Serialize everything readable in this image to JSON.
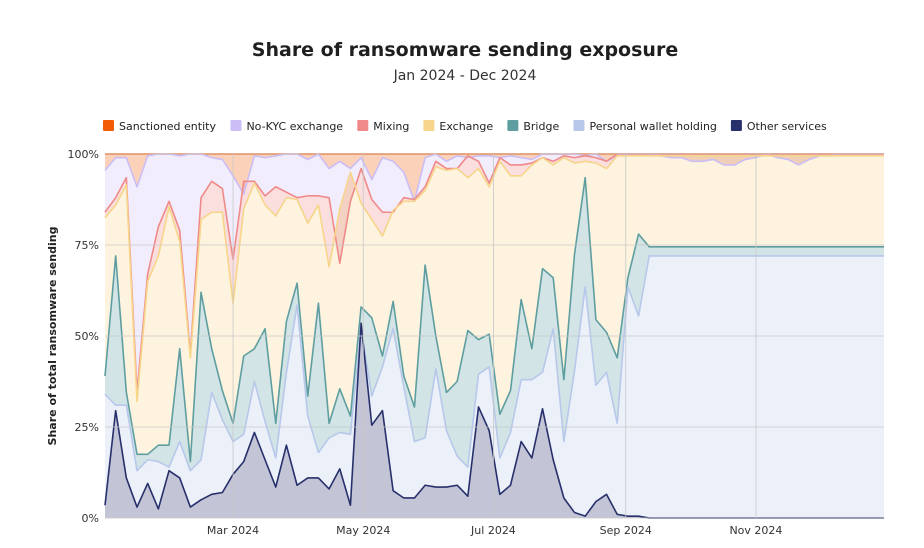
{
  "chart_data": {
    "type": "area",
    "stacked": true,
    "normalized": true,
    "title": "Share of ransomware sending exposure",
    "subtitle": "Jan 2024 - Dec 2024",
    "ylabel": "Share of total ransomware sending",
    "xlabel": "",
    "ylim": [
      0,
      100
    ],
    "yticks": [
      "0%",
      "25%",
      "50%",
      "75%",
      "100%"
    ],
    "ytick_values": [
      0,
      25,
      50,
      75,
      100
    ],
    "xticks": [
      {
        "label": "Mar 2024",
        "x": "2024-03-01"
      },
      {
        "label": "May 2024",
        "x": "2024-05-01"
      },
      {
        "label": "Jul 2024",
        "x": "2024-07-01"
      },
      {
        "label": "Sep 2024",
        "x": "2024-09-01"
      },
      {
        "label": "Nov 2024",
        "x": "2024-11-01"
      }
    ],
    "x_range": [
      "2024-01-01",
      "2024-12-31"
    ],
    "grid": true,
    "legend_position": "top",
    "x": [
      "2024-01-01",
      "2024-01-06",
      "2024-01-11",
      "2024-01-16",
      "2024-01-21",
      "2024-01-26",
      "2024-01-31",
      "2024-02-05",
      "2024-02-10",
      "2024-02-15",
      "2024-02-20",
      "2024-02-25",
      "2024-03-01",
      "2024-03-06",
      "2024-03-11",
      "2024-03-16",
      "2024-03-21",
      "2024-03-26",
      "2024-03-31",
      "2024-04-05",
      "2024-04-10",
      "2024-04-15",
      "2024-04-20",
      "2024-04-25",
      "2024-04-30",
      "2024-05-05",
      "2024-05-10",
      "2024-05-15",
      "2024-05-20",
      "2024-05-25",
      "2024-05-30",
      "2024-06-04",
      "2024-06-09",
      "2024-06-14",
      "2024-06-19",
      "2024-06-24",
      "2024-06-29",
      "2024-07-04",
      "2024-07-09",
      "2024-07-14",
      "2024-07-19",
      "2024-07-24",
      "2024-07-29",
      "2024-08-03",
      "2024-08-08",
      "2024-08-13",
      "2024-08-18",
      "2024-08-23",
      "2024-08-28",
      "2024-09-02",
      "2024-09-07",
      "2024-09-12",
      "2024-09-17",
      "2024-09-22",
      "2024-09-27",
      "2024-10-02",
      "2024-10-07",
      "2024-10-12",
      "2024-10-17",
      "2024-10-22",
      "2024-10-27",
      "2024-11-01",
      "2024-11-06",
      "2024-11-11",
      "2024-11-16",
      "2024-11-21",
      "2024-11-26",
      "2024-12-01",
      "2024-12-06",
      "2024-12-11",
      "2024-12-16",
      "2024-12-21",
      "2024-12-26",
      "2024-12-31"
    ],
    "series": [
      {
        "name": "Sanctioned entity",
        "color": "#f25c05",
        "cumulative": [
          100,
          100,
          100,
          100,
          100,
          100,
          100,
          100,
          100,
          100,
          100,
          100,
          100,
          100,
          100,
          100,
          100,
          100,
          100,
          100,
          100,
          100,
          100,
          100,
          100,
          100,
          100,
          100,
          100,
          100,
          100,
          100,
          100,
          100,
          100,
          100,
          100,
          100,
          100,
          100,
          100,
          100,
          100,
          100,
          100,
          100,
          100,
          100,
          100,
          100,
          100,
          100,
          100,
          100,
          100,
          100,
          100,
          100,
          100,
          100,
          100,
          100,
          100,
          100,
          100,
          100,
          100,
          100,
          100,
          100,
          100,
          100,
          100,
          100
        ]
      },
      {
        "name": "No-KYC exchange",
        "color": "#cbbdf5",
        "cumulative": [
          95.5,
          99,
          99,
          91,
          99.5,
          100,
          100,
          99.5,
          100,
          100,
          99,
          98.5,
          94,
          89,
          99.5,
          99,
          99.5,
          100,
          100,
          98.5,
          100,
          96,
          98,
          96,
          99,
          93,
          99,
          98,
          95,
          87,
          99,
          100,
          98,
          99.5,
          99,
          99.5,
          99.5,
          99,
          99.5,
          99,
          98.5,
          100,
          100,
          100,
          100,
          99.5,
          100,
          98,
          99.5,
          100,
          100,
          100,
          99.5,
          99,
          99,
          98,
          98,
          98.5,
          97,
          97,
          98.5,
          99,
          100,
          99,
          98.5,
          97,
          98.5,
          99.5,
          99.5,
          100,
          100,
          100,
          100,
          100
        ]
      },
      {
        "name": "Mixing",
        "color": "#f08a8a",
        "cumulative": [
          84,
          88,
          93.5,
          34.5,
          67,
          80,
          87,
          79,
          45,
          88,
          92.5,
          90.5,
          71,
          92.5,
          92.5,
          88.5,
          91,
          89.5,
          88,
          88.5,
          88.5,
          88,
          70,
          87,
          96,
          87.5,
          84,
          84,
          88,
          87.5,
          91,
          98,
          96,
          96,
          99.5,
          98,
          92,
          99,
          97,
          97,
          97.5,
          99,
          98,
          99.5,
          99,
          99.5,
          99,
          98,
          100,
          100,
          100,
          100,
          100,
          100,
          100,
          100,
          100,
          100,
          100,
          100,
          100,
          100,
          100,
          100,
          100,
          100,
          100,
          100,
          100,
          100,
          100,
          100,
          100,
          100
        ]
      },
      {
        "name": "Exchange",
        "color": "#f7d58a",
        "cumulative": [
          82.5,
          86,
          91.5,
          32,
          65,
          72,
          85.5,
          76,
          44,
          82,
          84,
          84,
          59,
          85,
          92,
          86,
          83,
          88,
          87.5,
          81,
          86,
          69,
          85,
          95,
          86.5,
          82,
          77.5,
          84.5,
          87,
          87,
          90,
          96.5,
          95.5,
          96,
          93.5,
          96,
          91,
          98,
          94,
          94,
          97,
          99,
          97,
          99,
          97.5,
          98,
          97.5,
          96,
          99.5,
          99.5,
          99.5,
          99.5,
          99.5,
          99.5,
          99.5,
          99.5,
          99.5,
          99.5,
          99.5,
          99.5,
          99.5,
          99.5,
          99.5,
          99.5,
          99.5,
          99.5,
          99.5,
          99.5,
          99.5,
          99.5,
          99.5,
          99.5,
          99.5,
          99.5
        ]
      },
      {
        "name": "Bridge",
        "color": "#5f9ea0",
        "cumulative": [
          39,
          72,
          34.5,
          17.5,
          17.5,
          20,
          20,
          46.5,
          15.5,
          62,
          46.5,
          35,
          26,
          44.5,
          46.5,
          52,
          26,
          54,
          64.5,
          33.5,
          59,
          26,
          35.5,
          28,
          58,
          55,
          44.5,
          59.5,
          39,
          30.5,
          69.5,
          50,
          34.5,
          37.5,
          51.5,
          49,
          50.5,
          28.5,
          35,
          60,
          46.5,
          68.5,
          66,
          38,
          72.5,
          93.5,
          54.5,
          51,
          44,
          66,
          78,
          74.5,
          74.5,
          74.5,
          74.5,
          74.5,
          74.5,
          74.5,
          74.5,
          74.5,
          74.5,
          74.5,
          74.5,
          74.5,
          74.5,
          74.5,
          74.5,
          74.5,
          74.5,
          74.5,
          74.5,
          74.5,
          74.5,
          74.5
        ]
      },
      {
        "name": "Personal wallet holding",
        "color": "#b7c8ea",
        "cumulative": [
          34,
          31,
          31,
          13,
          16,
          15.5,
          14,
          21,
          13,
          16,
          34.5,
          27,
          21,
          23,
          37.5,
          26.5,
          16.5,
          40,
          58.5,
          28,
          18,
          22,
          23.5,
          23,
          52,
          33.5,
          41.5,
          52,
          36,
          21,
          22,
          41,
          24,
          17,
          14,
          39.5,
          41.5,
          16.5,
          23.5,
          38,
          38,
          40,
          52,
          21,
          40.5,
          63.5,
          36.5,
          40,
          26,
          63.5,
          55.5,
          72,
          72,
          72,
          72,
          72,
          72,
          72,
          72,
          72,
          72,
          72,
          72,
          72,
          72,
          72,
          72,
          72,
          72,
          72,
          72,
          72,
          72,
          72
        ]
      },
      {
        "name": "Other services",
        "color": "#27306b",
        "cumulative": [
          3.5,
          29.5,
          11,
          3,
          9.5,
          2.5,
          13,
          11,
          3,
          5,
          6.5,
          7,
          12,
          15.5,
          23.5,
          16,
          8.5,
          20,
          9,
          11,
          11,
          8,
          13.5,
          3.5,
          53.5,
          25.5,
          29.5,
          7.5,
          5.5,
          5.5,
          9,
          8.5,
          8.5,
          9,
          6,
          30.5,
          24,
          6.5,
          9,
          21,
          16.5,
          30,
          16,
          5.5,
          1.5,
          0.5,
          4.5,
          6.5,
          1,
          0.5,
          0.5,
          0,
          0,
          0,
          0,
          0,
          0,
          0,
          0,
          0,
          0,
          0,
          0,
          0,
          0,
          0,
          0,
          0,
          0,
          0,
          0,
          0,
          0,
          0
        ]
      }
    ]
  }
}
